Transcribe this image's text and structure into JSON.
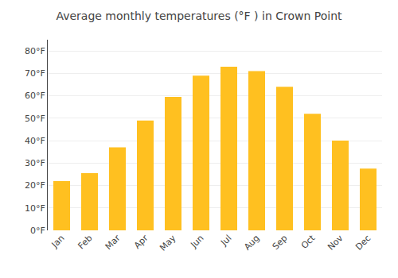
{
  "chart_data": {
    "type": "bar",
    "title": "Average monthly temperatures (°F ) in Crown Point",
    "categories": [
      "Jan",
      "Feb",
      "Mar",
      "Apr",
      "May",
      "Jun",
      "Jul",
      "Aug",
      "Sep",
      "Oct",
      "Nov",
      "Dec"
    ],
    "values": [
      22,
      25.5,
      37,
      49,
      59.5,
      69,
      73,
      71,
      64,
      52,
      40,
      27.5
    ],
    "color": "#FFC020",
    "ylim": [
      0,
      85
    ],
    "yticks": [
      {
        "value": 0,
        "label": "0°F"
      },
      {
        "value": 10,
        "label": "10°F"
      },
      {
        "value": 20,
        "label": "20°F"
      },
      {
        "value": 30,
        "label": "30°F"
      },
      {
        "value": 40,
        "label": "40°F"
      },
      {
        "value": 50,
        "label": "50°F"
      },
      {
        "value": 60,
        "label": "60°F"
      },
      {
        "value": 70,
        "label": "70°F"
      },
      {
        "value": 80,
        "label": "80°F"
      }
    ],
    "grid": true
  }
}
